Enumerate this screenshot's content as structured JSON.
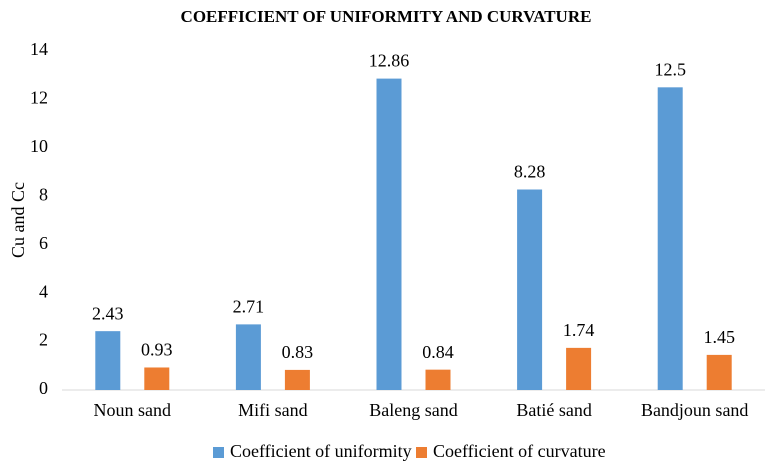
{
  "chart_data": {
    "type": "bar",
    "title": "COEFFICIENT OF UNIFORMITY AND CURVATURE",
    "y_label": "Cu and Cc",
    "categories": [
      "Noun sand",
      "Mifi sand",
      "Baleng sand",
      "Batié sand",
      "Bandjoun sand"
    ],
    "series": [
      {
        "name": "Coefficient of uniformity",
        "color": "#5b9bd5",
        "values": [
          2.43,
          2.71,
          12.86,
          8.28,
          12.5
        ]
      },
      {
        "name": "Coefficient of curvature",
        "color": "#ed7d31",
        "values": [
          0.93,
          0.83,
          0.84,
          1.74,
          1.45
        ]
      }
    ],
    "ylim": [
      0,
      14
    ],
    "yticks": [
      0,
      2,
      4,
      6,
      8,
      10,
      12,
      14
    ],
    "grid": false,
    "legend": "bottom"
  }
}
